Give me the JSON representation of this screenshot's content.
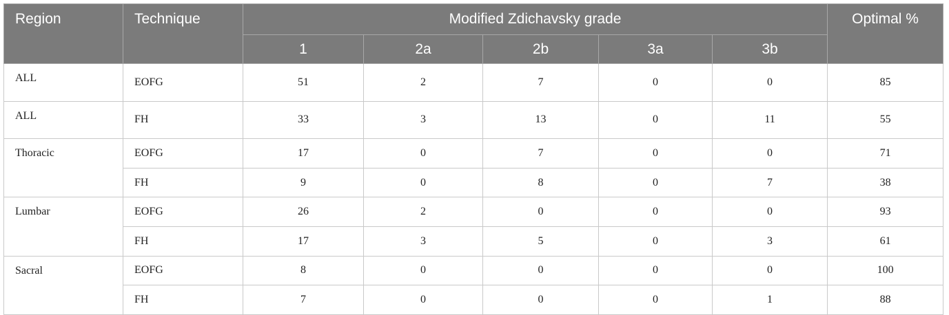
{
  "header": {
    "region": "Region",
    "technique": "Technique",
    "group": "Modified Zdichavsky grade",
    "grades": [
      "1",
      "2a",
      "2b",
      "3a",
      "3b"
    ],
    "optimal": "Optimal %"
  },
  "groups": [
    {
      "region": "ALL",
      "rows": [
        {
          "technique": "EOFG",
          "cells": [
            51,
            2,
            7,
            0,
            0
          ],
          "optimal": 85
        }
      ]
    },
    {
      "region": "ALL",
      "rows": [
        {
          "technique": "FH",
          "cells": [
            33,
            3,
            13,
            0,
            11
          ],
          "optimal": 55
        }
      ]
    },
    {
      "region": "Thoracic",
      "rows": [
        {
          "technique": "EOFG",
          "cells": [
            17,
            0,
            7,
            0,
            0
          ],
          "optimal": 71
        },
        {
          "technique": "FH",
          "cells": [
            9,
            0,
            8,
            0,
            7
          ],
          "optimal": 38
        }
      ]
    },
    {
      "region": "Lumbar",
      "rows": [
        {
          "technique": "EOFG",
          "cells": [
            26,
            2,
            0,
            0,
            0
          ],
          "optimal": 93
        },
        {
          "technique": "FH",
          "cells": [
            17,
            3,
            5,
            0,
            3
          ],
          "optimal": 61
        }
      ]
    },
    {
      "region": "Sacral",
      "rows": [
        {
          "technique": "EOFG",
          "cells": [
            8,
            0,
            0,
            0,
            0
          ],
          "optimal": 100
        },
        {
          "technique": "FH",
          "cells": [
            7,
            0,
            0,
            0,
            1
          ],
          "optimal": 88
        }
      ]
    }
  ]
}
